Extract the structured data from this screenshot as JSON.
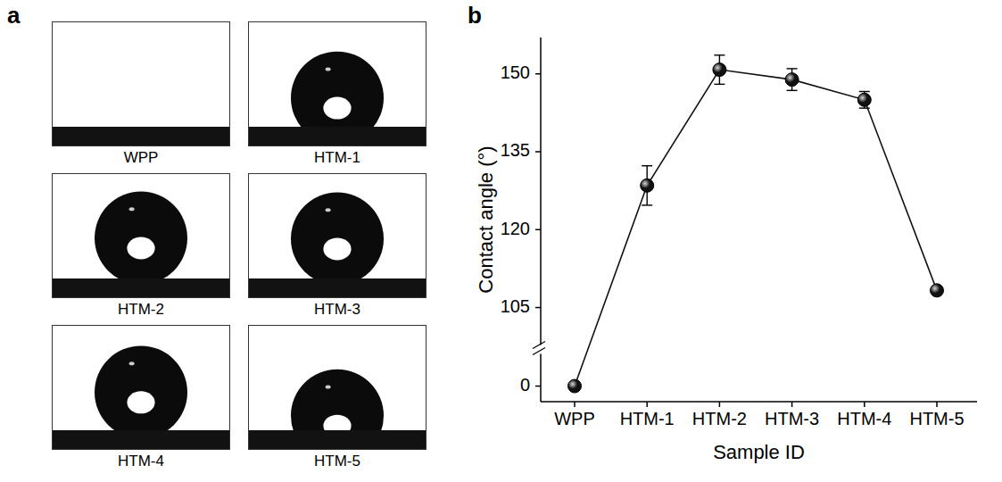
{
  "panel_labels": [
    "a",
    "b"
  ],
  "images": {
    "labels": [
      "WPP",
      "HTM-1",
      "HTM-2",
      "HTM-3",
      "HTM-4",
      "HTM-5"
    ]
  },
  "chart_data": {
    "type": "line",
    "x_label": "Sample ID",
    "y_label": "Contact angle (°)",
    "categories": [
      "WPP",
      "HTM-1",
      "HTM-2",
      "HTM-3",
      "HTM-4",
      "HTM-5"
    ],
    "values": [
      0,
      128.5,
      150.8,
      148.9,
      145.0,
      108.3
    ],
    "errors": [
      0.3,
      3.8,
      2.8,
      2.1,
      1.6,
      0.6
    ],
    "ylim": [
      -3,
      157
    ],
    "y_break": [
      5,
      99
    ],
    "yticks": [
      0,
      105,
      120,
      135,
      150
    ],
    "color": "#111111",
    "marker": "circle",
    "line_style": "solid",
    "grid": false
  }
}
